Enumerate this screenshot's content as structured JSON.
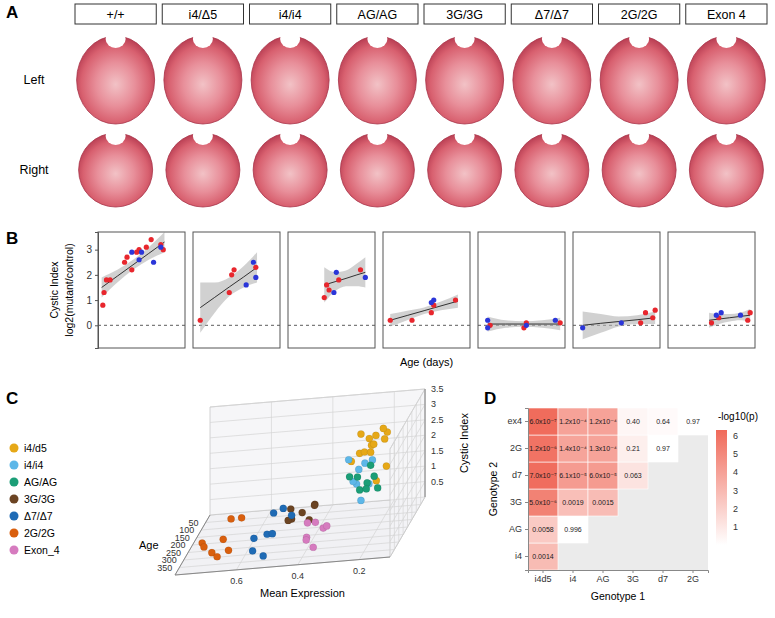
{
  "chart_data": [
    {
      "panel": "A",
      "type": "image_grid",
      "columns": [
        "+/+",
        "i4/Δ5",
        "i4/i4",
        "AG/AG",
        "3G/3G",
        "Δ7/Δ7",
        "2G/2G",
        "Exon 4"
      ],
      "rows": [
        "Left",
        "Right"
      ]
    },
    {
      "panel": "B",
      "type": "scatter",
      "ylabel": [
        "Cystic Index",
        "log2(mutant/control)"
      ],
      "xlabel": "Age (days)",
      "xlim": [
        0,
        360
      ],
      "ylim": [
        -0.9,
        3.7
      ],
      "yticks": [
        0,
        1,
        2,
        3
      ],
      "hline": 0,
      "tick_labels": "y",
      "grid": false,
      "facets": [
        {
          "series": [
            {
              "color": "#e8262d",
              "x": [
                20,
                25,
                35,
                50,
                110,
                120,
                140,
                160,
                170,
                200,
                220,
                260,
                270
              ],
              "values": [
                0.8,
                1.3,
                1.8,
                1.8,
                2.5,
                2.7,
                2.2,
                2.9,
                3.0,
                3.1,
                3.4,
                3.2,
                3.0
              ]
            },
            {
              "color": "#2b36d9",
              "x": [
                140,
                170,
                180,
                230,
                260
              ],
              "values": [
                2.9,
                2.6,
                2.9,
                2.5,
                3.1
              ]
            }
          ],
          "fit": {
            "x": [
              15,
              80,
              145,
              210,
              275
            ],
            "values": [
              1.5,
              1.95,
              2.4,
              2.85,
              3.3
            ],
            "lower": [
              1.1,
              1.7,
              2.2,
              2.6,
              2.9
            ],
            "upper": [
              1.9,
              2.2,
              2.6,
              3.1,
              3.7
            ]
          }
        },
        {
          "series": [
            {
              "color": "#e8262d",
              "x": [
                30,
                150,
                160,
                170,
                260
              ],
              "values": [
                0.2,
                1.3,
                2.0,
                2.2,
                2.3
              ]
            },
            {
              "color": "#2b36d9",
              "x": [
                220,
                250,
                260
              ],
              "values": [
                1.6,
                2.5,
                1.9
              ]
            }
          ],
          "fit": {
            "x": [
              30,
              90,
              150,
              210,
              265
            ],
            "values": [
              0.7,
              1.11,
              1.52,
              1.92,
              2.3
            ],
            "lower": [
              -0.3,
              0.5,
              1.15,
              1.5,
              1.7
            ],
            "upper": [
              1.7,
              1.7,
              1.9,
              2.35,
              2.9
            ]
          }
        },
        {
          "series": [
            {
              "color": "#e8262d",
              "x": [
                150,
                160,
                170,
                210,
                300
              ],
              "values": [
                1.1,
                1.6,
                1.4,
                1.8,
                2.2
              ]
            },
            {
              "color": "#2b36d9",
              "x": [
                190,
                200,
                320
              ],
              "values": [
                1.3,
                2.1,
                1.9
              ]
            }
          ],
          "fit": {
            "x": [
              150,
              195,
              240,
              285,
              320
            ],
            "values": [
              1.6,
              1.73,
              1.86,
              2.0,
              2.1
            ],
            "lower": [
              0.9,
              1.35,
              1.55,
              1.55,
              1.5
            ],
            "upper": [
              2.3,
              2.1,
              2.17,
              2.45,
              2.7
            ]
          }
        },
        {
          "series": [
            {
              "color": "#e8262d",
              "x": [
                30,
                120,
                200,
                210,
                300
              ],
              "values": [
                0.2,
                0.2,
                0.5,
                0.8,
                1.0
              ]
            },
            {
              "color": "#2b36d9",
              "x": [
                200,
                210
              ],
              "values": [
                0.9,
                1.0
              ]
            }
          ],
          "fit": {
            "x": [
              30,
              100,
              170,
              240,
              310
            ],
            "values": [
              0.2,
              0.39,
              0.58,
              0.77,
              0.96
            ],
            "lower": [
              -0.05,
              0.2,
              0.45,
              0.6,
              0.7
            ],
            "upper": [
              0.45,
              0.58,
              0.71,
              0.94,
              1.22
            ]
          }
        },
        {
          "series": [
            {
              "color": "#e8262d",
              "x": [
                50,
                190,
                200,
                340
              ],
              "values": [
                0.0,
                -0.1,
                0.1,
                0.1
              ]
            },
            {
              "color": "#2b36d9",
              "x": [
                40,
                40,
                200,
                320
              ],
              "values": [
                0.2,
                -0.1,
                0.0,
                0.2
              ]
            }
          ],
          "fit": {
            "x": [
              40,
              115,
              190,
              265,
              340
            ],
            "values": [
              0.05,
              0.05,
              0.05,
              0.05,
              0.05
            ],
            "lower": [
              -0.25,
              -0.1,
              -0.06,
              -0.1,
              -0.2
            ],
            "upper": [
              0.35,
              0.2,
              0.16,
              0.2,
              0.3
            ]
          }
        },
        {
          "series": [
            {
              "color": "#e8262d",
              "x": [
                280,
                300,
                330,
                340
              ],
              "values": [
                0.1,
                0.5,
                0.3,
                0.6
              ]
            },
            {
              "color": "#2b36d9",
              "x": [
                40,
                200
              ],
              "values": [
                -0.1,
                0.1
              ]
            }
          ],
          "fit": {
            "x": [
              40,
              115,
              190,
              265,
              340
            ],
            "values": [
              0.0,
              0.08,
              0.15,
              0.22,
              0.3
            ],
            "lower": [
              -0.55,
              -0.3,
              -0.05,
              0.05,
              0.05
            ],
            "upper": [
              0.55,
              0.45,
              0.35,
              0.4,
              0.55
            ]
          }
        },
        {
          "series": [
            {
              "color": "#e8262d",
              "x": [
                180,
                210,
                330,
                340
              ],
              "values": [
                0.1,
                0.3,
                0.2,
                0.5
              ]
            },
            {
              "color": "#2b36d9",
              "x": [
                200,
                220,
                300
              ],
              "values": [
                0.4,
                0.5,
                0.4
              ]
            }
          ],
          "fit": {
            "x": [
              170,
              212,
              255,
              297,
              340
            ],
            "values": [
              0.2,
              0.25,
              0.3,
              0.35,
              0.4
            ],
            "lower": [
              -0.1,
              0.05,
              0.15,
              0.2,
              0.15
            ],
            "upper": [
              0.5,
              0.45,
              0.45,
              0.5,
              0.65
            ]
          }
        }
      ]
    },
    {
      "panel": "C",
      "type": "scatter3d",
      "xlabel": "Age",
      "ylabel": "Mean Expression",
      "zlabel": "Cystic Index",
      "xlim": [
        0,
        400
      ],
      "xticks": [
        50,
        100,
        150,
        200,
        250,
        300,
        350
      ],
      "ylim": [
        0.1,
        0.8
      ],
      "yticks": [
        0.2,
        0.4,
        0.6
      ],
      "zlim": [
        0,
        3.5
      ],
      "zticks": [
        0.5,
        1,
        1.5,
        2,
        2.5,
        3,
        3.5
      ],
      "legend": "left",
      "series": [
        {
          "name": "i4/d5",
          "color": "#e6a817",
          "x": [
            20,
            30,
            45,
            60,
            110,
            130,
            150,
            170,
            190,
            210,
            230,
            250,
            270,
            140
          ],
          "y": [
            0.22,
            0.25,
            0.3,
            0.28,
            0.2,
            0.24,
            0.18,
            0.26,
            0.22,
            0.2,
            0.17,
            0.21,
            0.19,
            0.3
          ],
          "z": [
            1.2,
            0.8,
            1.8,
            1.9,
            2.5,
            2.2,
            2.9,
            3.0,
            2.7,
            3.1,
            3.4,
            3.2,
            3.1,
            2.0
          ]
        },
        {
          "name": "i4/i4",
          "color": "#5db7e8",
          "x": [
            30,
            150,
            160,
            170,
            220,
            250,
            260,
            265
          ],
          "y": [
            0.3,
            0.28,
            0.25,
            0.3,
            0.22,
            0.2,
            0.26,
            0.24
          ],
          "z": [
            0.2,
            1.3,
            2.0,
            2.2,
            1.6,
            2.5,
            1.9,
            2.3
          ]
        },
        {
          "name": "AG/AG",
          "color": "#1b9e77",
          "x": [
            150,
            160,
            170,
            190,
            200,
            210,
            300,
            320
          ],
          "y": [
            0.27,
            0.3,
            0.24,
            0.2,
            0.22,
            0.26,
            0.18,
            0.2
          ],
          "z": [
            1.1,
            1.6,
            1.4,
            1.3,
            2.1,
            1.8,
            2.2,
            1.9
          ]
        },
        {
          "name": "3G/3G",
          "color": "#6b4423",
          "x": [
            30,
            120,
            200,
            200,
            210,
            210,
            300
          ],
          "y": [
            0.45,
            0.5,
            0.42,
            0.48,
            0.44,
            0.4,
            0.46
          ],
          "z": [
            0.2,
            0.2,
            0.5,
            0.9,
            0.8,
            1.0,
            1.0
          ]
        },
        {
          "name": "Δ7/Δ7",
          "color": "#1f6bb5",
          "x": [
            40,
            45,
            50,
            190,
            200,
            200,
            320,
            340
          ],
          "y": [
            0.55,
            0.58,
            0.52,
            0.56,
            0.6,
            0.54,
            0.57,
            0.53
          ],
          "z": [
            0.2,
            0.1,
            0.0,
            0.1,
            0.05,
            0.15,
            0.2,
            0.1
          ]
        },
        {
          "name": "2G/2G",
          "color": "#d95f0e",
          "x": [
            40,
            60,
            200,
            280,
            300,
            330,
            340,
            350
          ],
          "y": [
            0.72,
            0.68,
            0.7,
            0.66,
            0.74,
            0.7,
            0.68,
            0.72
          ],
          "z": [
            0.0,
            0.1,
            0.1,
            0.1,
            0.5,
            0.3,
            0.2,
            0.6
          ]
        },
        {
          "name": "Exon_4",
          "color": "#d67bbf",
          "x": [
            180,
            200,
            210,
            220,
            300,
            330,
            340
          ],
          "y": [
            0.38,
            0.4,
            0.36,
            0.42,
            0.4,
            0.37,
            0.39
          ],
          "z": [
            0.1,
            0.4,
            0.3,
            0.5,
            0.4,
            0.2,
            0.5
          ]
        }
      ]
    },
    {
      "panel": "D",
      "type": "heatmap",
      "xlabel": "Genotype 1",
      "ylabel": "Genotype 2",
      "x_categories": [
        "i4d5",
        "i4",
        "AG",
        "3G",
        "d7",
        "2G"
      ],
      "y_categories": [
        "i4",
        "AG",
        "3G",
        "d7",
        "2G",
        "ex4"
      ],
      "values": [
        [
          0.0014,
          null,
          null,
          null,
          null,
          null
        ],
        [
          0.0058,
          0.996,
          null,
          null,
          null,
          null
        ],
        [
          5e-06,
          0.0019,
          0.0015,
          null,
          null,
          null
        ],
        [
          7e-07,
          6.1e-05,
          6e-05,
          0.063,
          null,
          null
        ],
        [
          1.2e-06,
          0.00014,
          0.00013,
          0.21,
          0.97,
          null
        ],
        [
          6e-07,
          0.00012,
          0.00012,
          0.4,
          0.64,
          0.97
        ]
      ],
      "value_labels": [
        [
          "0.0014",
          null,
          null,
          null,
          null,
          null
        ],
        [
          "0.0058",
          "0.996",
          null,
          null,
          null,
          null
        ],
        [
          "5.0x10⁻⁶",
          "0.0019",
          "0.0015",
          null,
          null,
          null
        ],
        [
          "7.0x10⁻⁷",
          "6.1x10⁻⁵",
          "6.0x10⁻⁵",
          "0.063",
          null,
          null
        ],
        [
          "1.2x10⁻⁶",
          "1.4x10⁻⁴",
          "1.3x10⁻⁴",
          "0.21",
          "0.97",
          null
        ],
        [
          "6.0x10⁻⁷",
          "1.2x10⁻⁴",
          "1.2x10⁻⁴",
          "0.40",
          "0.64",
          "0.97"
        ]
      ],
      "data_labels": true,
      "colorbar": {
        "title": "-log10(p)",
        "range": [
          0,
          6.3
        ],
        "ticks": [
          1,
          2,
          3,
          4,
          5,
          6
        ]
      }
    }
  ]
}
